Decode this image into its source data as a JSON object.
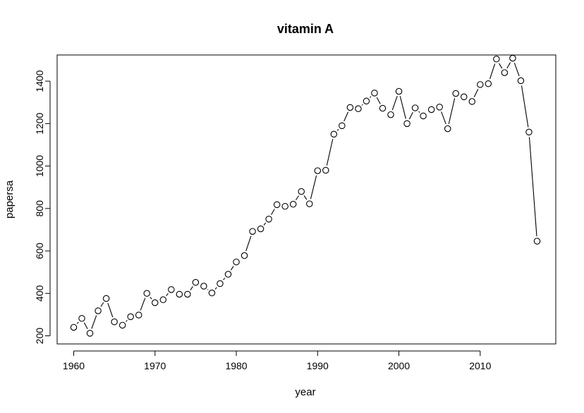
{
  "chart_data": {
    "type": "line",
    "title": "vitamin A",
    "xlabel": "year",
    "ylabel": "papersa",
    "xlim": [
      1960,
      2017
    ],
    "ylim": [
      200,
      1510
    ],
    "xticks": [
      1960,
      1970,
      1980,
      1990,
      2000,
      2010
    ],
    "yticks": [
      200,
      400,
      600,
      800,
      1000,
      1200,
      1400
    ],
    "grid": false,
    "marker": "open-circle",
    "x": [
      1960,
      1961,
      1962,
      1963,
      1964,
      1965,
      1966,
      1967,
      1968,
      1969,
      1970,
      1971,
      1972,
      1973,
      1974,
      1975,
      1976,
      1977,
      1978,
      1979,
      1980,
      1981,
      1982,
      1983,
      1984,
      1985,
      1986,
      1987,
      1988,
      1989,
      1990,
      1991,
      1992,
      1993,
      1994,
      1995,
      1996,
      1997,
      1998,
      1999,
      2000,
      2001,
      2002,
      2003,
      2004,
      2005,
      2006,
      2007,
      2008,
      2009,
      2010,
      2011,
      2012,
      2013,
      2014,
      2015,
      2016,
      2017
    ],
    "series": [
      {
        "values": [
          240,
          282,
          212,
          318,
          376,
          266,
          250,
          290,
          298,
          400,
          356,
          370,
          418,
          396,
          396,
          452,
          434,
          402,
          446,
          490,
          548,
          578,
          692,
          704,
          750,
          818,
          810,
          820,
          880,
          822,
          978,
          980,
          1150,
          1190,
          1276,
          1270,
          1306,
          1344,
          1272,
          1242,
          1352,
          1200,
          1274,
          1236,
          1266,
          1278,
          1176,
          1342,
          1326,
          1304,
          1384,
          1388,
          1504,
          1440,
          1508,
          1402,
          1160,
          646
        ]
      }
    ]
  }
}
